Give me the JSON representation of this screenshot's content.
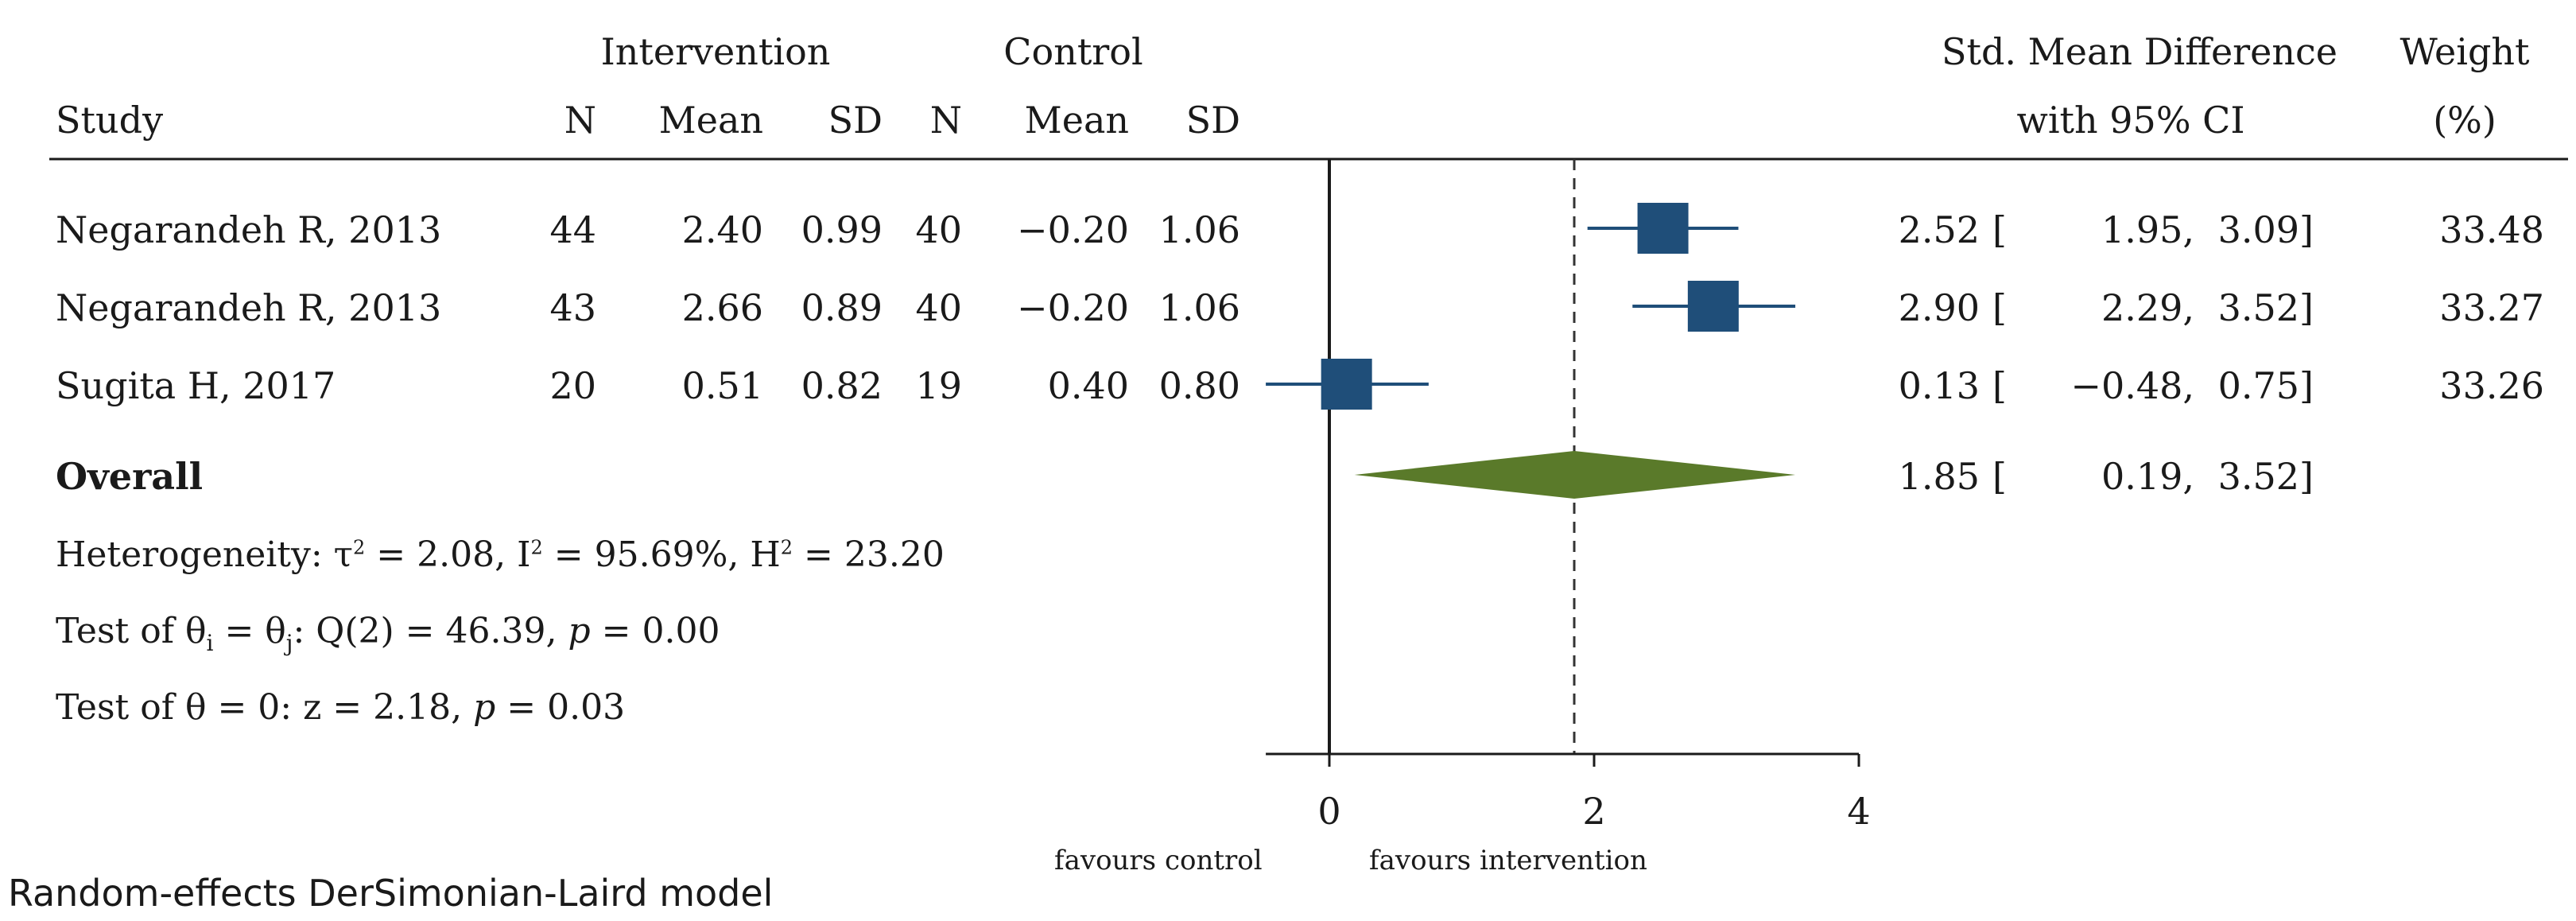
{
  "header": {
    "group1": "Intervention",
    "group2": "Control",
    "study": "Study",
    "n": "N",
    "mean": "Mean",
    "sd": "SD",
    "effect_line1": "Std. Mean Difference",
    "effect_line2": "with 95% CI",
    "weight_line1": "Weight",
    "weight_line2": "(%)"
  },
  "studies": [
    {
      "study": "Negarandeh R, 2013",
      "n1": "44",
      "mean1": "2.40",
      "sd1": "0.99",
      "n2": "40",
      "mean2": "−0.20",
      "sd2": "1.06",
      "est_text": "2.52",
      "lo_text": "1.95,",
      "hi_text": "3.09]",
      "weight": "33.48"
    },
    {
      "study": "Negarandeh R, 2013",
      "n1": "43",
      "mean1": "2.66",
      "sd1": "0.89",
      "n2": "40",
      "mean2": "−0.20",
      "sd2": "1.06",
      "est_text": "2.90",
      "lo_text": "2.29,",
      "hi_text": "3.52]",
      "weight": "33.27"
    },
    {
      "study": "Sugita H, 2017",
      "n1": "20",
      "mean1": "0.51",
      "sd1": "0.82",
      "n2": "19",
      "mean2": "0.40",
      "sd2": "0.80",
      "est_text": "0.13",
      "lo_text": "−0.48,",
      "hi_text": "0.75]",
      "weight": "33.26"
    }
  ],
  "overall": {
    "label": "Overall",
    "est_text": "1.85",
    "lo_text": "0.19,",
    "hi_text": "3.52]",
    "bracket": "["
  },
  "stats": {
    "heterogeneity": {
      "prefix": "Heterogeneity: τ",
      "t2": "= 2.08, I",
      "i2": "= 95.69%, H",
      "h2": "= 23.20",
      "sup": "2"
    },
    "test1": {
      "a": "Test of θ",
      "sub_i": "i",
      "b": " = θ",
      "sub_j": "j",
      "c": ": Q(2) = 46.39, ",
      "p": "p",
      "d": " = 0.00"
    },
    "test2": {
      "a": "Test of θ = 0: z = 2.18, ",
      "p": "p",
      "d": " = 0.03"
    }
  },
  "axis": {
    "ticks": [
      "0",
      "2",
      "4"
    ],
    "favours_left": "favours control",
    "favours_right": "favours intervention"
  },
  "footer": "Random-effects DerSimonian-Laird model",
  "chart_data": {
    "type": "forest",
    "x_ticks": [
      0,
      2,
      4
    ],
    "xlim": [
      -0.48,
      4
    ],
    "null_line": 0,
    "overall_line": 1.85,
    "studies": [
      {
        "label": "Negarandeh R, 2013",
        "estimate": 2.52,
        "lower": 1.95,
        "upper": 3.09,
        "weight": 33.48
      },
      {
        "label": "Negarandeh R, 2013",
        "estimate": 2.9,
        "lower": 2.29,
        "upper": 3.52,
        "weight": 33.27
      },
      {
        "label": "Sugita H, 2017",
        "estimate": 0.13,
        "lower": -0.48,
        "upper": 0.75,
        "weight": 33.26
      }
    ],
    "overall": {
      "estimate": 1.85,
      "lower": 0.19,
      "upper": 3.52
    },
    "colors": {
      "study": "#1f4e79",
      "overall": "#5a7a2a",
      "line": "#1a1a1a"
    }
  }
}
